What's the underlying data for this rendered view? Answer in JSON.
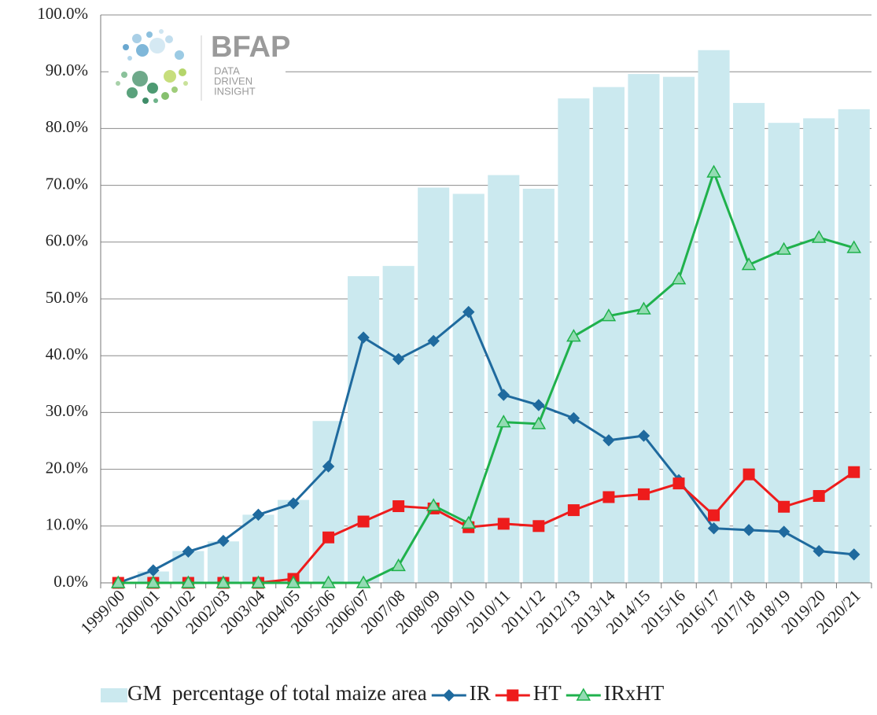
{
  "logo": {
    "name": "BFAP",
    "tagline": [
      "DATA",
      "DRIVEN",
      "INSIGHT"
    ]
  },
  "chart_data": {
    "type": "bar_line",
    "categories": [
      "1999/00",
      "2000/01",
      "2001/02",
      "2002/03",
      "2003/04",
      "2004/05",
      "2005/06",
      "2006/07",
      "2007/08",
      "2008/09",
      "2009/10",
      "2010/11",
      "2011/12",
      "2012/13",
      "2013/14",
      "2014/15",
      "2015/16",
      "2016/17",
      "2017/18",
      "2018/19",
      "2019/20",
      "2020/21"
    ],
    "series": [
      {
        "name": "GM  percentage of total maize area",
        "kind": "bar",
        "color": "#cbe9ef",
        "values": [
          0,
          2.0,
          5.6,
          7.3,
          12.0,
          14.6,
          28.5,
          54.0,
          55.8,
          69.6,
          68.5,
          71.8,
          69.4,
          85.3,
          87.3,
          89.6,
          89.1,
          93.8,
          84.5,
          81.0,
          81.8,
          83.4
        ]
      },
      {
        "name": "IR",
        "kind": "line",
        "marker": "diamond",
        "color": "#1f6a9e",
        "marker_fill": "#1f6a9e",
        "values": [
          0,
          2.2,
          5.5,
          7.4,
          12.0,
          14.0,
          20.5,
          43.2,
          39.4,
          42.6,
          47.7,
          33.1,
          31.3,
          29.0,
          25.1,
          25.9,
          18.1,
          9.6,
          9.3,
          9.0,
          5.6,
          5.0
        ]
      },
      {
        "name": "HT",
        "kind": "line",
        "marker": "square",
        "color": "#ee1c1c",
        "marker_fill": "#ee1c1c",
        "values": [
          0,
          0,
          0,
          0,
          0,
          0.7,
          8.0,
          10.8,
          13.5,
          13.1,
          9.8,
          10.4,
          10.0,
          12.8,
          15.1,
          15.6,
          17.5,
          11.9,
          19.1,
          13.4,
          15.3,
          19.5
        ]
      },
      {
        "name": "IRxHT",
        "kind": "line",
        "marker": "triangle",
        "color": "#1fb14c",
        "marker_fill": "#93dbb3",
        "values": [
          0,
          0,
          0,
          0,
          0,
          0,
          0,
          0,
          3.0,
          13.6,
          10.5,
          28.3,
          28.0,
          43.4,
          47.0,
          48.2,
          53.5,
          72.3,
          56.0,
          58.7,
          60.8,
          59.0
        ]
      }
    ],
    "ylim": [
      0,
      100
    ],
    "yticks": [
      {
        "value": 0,
        "label": "0.0%"
      },
      {
        "value": 10,
        "label": "10.0%"
      },
      {
        "value": 20,
        "label": "20.0%"
      },
      {
        "value": 30,
        "label": "30.0%"
      },
      {
        "value": 40,
        "label": "40.0%"
      },
      {
        "value": 50,
        "label": "50.0%"
      },
      {
        "value": 60,
        "label": "60.0%"
      },
      {
        "value": 70,
        "label": "70.0%"
      },
      {
        "value": 80,
        "label": "80.0%"
      },
      {
        "value": 90,
        "label": "90.0%"
      },
      {
        "value": 100,
        "label": "100.0%"
      }
    ],
    "grid": true,
    "legend": "bottom"
  }
}
